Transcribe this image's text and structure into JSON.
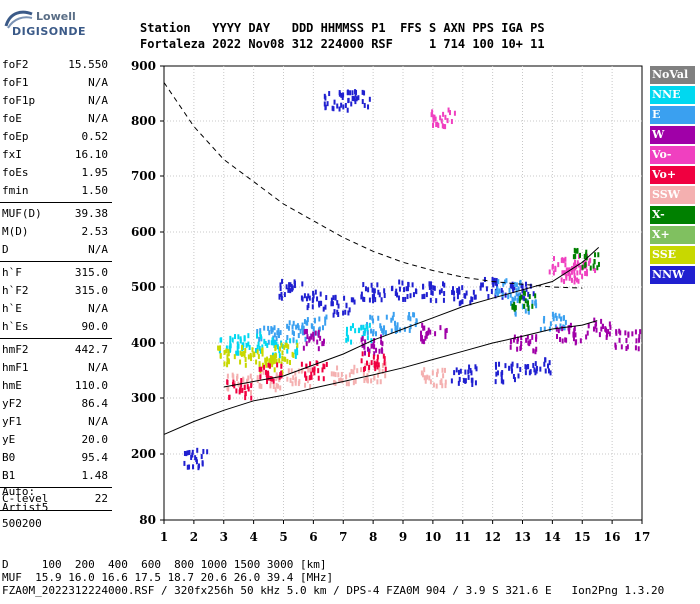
{
  "logo": {
    "top": "Lowell",
    "bottom": "DIGISONDE"
  },
  "header": {
    "line1": "Station   YYYY DAY   DDD HHMMSS P1  FFS S AXN PPS IGA PS",
    "line2": "Fortaleza 2022 Nov08 312 224000 RSF     1 714 100 10+ 11"
  },
  "params": {
    "group1": [
      {
        "name": "foF2",
        "value": "15.550"
      },
      {
        "name": "foF1",
        "value": "N/A"
      },
      {
        "name": "foF1p",
        "value": "N/A"
      },
      {
        "name": "foE",
        "value": "N/A"
      },
      {
        "name": "foEp",
        "value": "0.52"
      },
      {
        "name": "fxI",
        "value": "16.10"
      },
      {
        "name": "foEs",
        "value": "1.95"
      },
      {
        "name": "fmin",
        "value": "1.50"
      }
    ],
    "group2": [
      {
        "name": "MUF(D)",
        "value": "39.38"
      },
      {
        "name": "M(D)",
        "value": "2.53"
      },
      {
        "name": "D",
        "value": "N/A"
      }
    ],
    "group3": [
      {
        "name": "h`F",
        "value": "315.0"
      },
      {
        "name": "h`F2",
        "value": "315.0"
      },
      {
        "name": "h`E",
        "value": "N/A"
      },
      {
        "name": "h`Es",
        "value": "90.0"
      }
    ],
    "group4": [
      {
        "name": "hmF2",
        "value": "442.7"
      },
      {
        "name": "hmF1",
        "value": "N/A"
      },
      {
        "name": "hmE",
        "value": "110.0"
      },
      {
        "name": "yF2",
        "value": "86.4"
      },
      {
        "name": "yF1",
        "value": "N/A"
      },
      {
        "name": "yE",
        "value": "20.0"
      },
      {
        "name": "B0",
        "value": "95.4"
      },
      {
        "name": "B1",
        "value": "1.48"
      }
    ],
    "group5": [
      {
        "name": "C-level",
        "value": "22"
      }
    ]
  },
  "auto": {
    "line1": "Auto:",
    "line2": "Artist5",
    "line3": "500200"
  },
  "legend": [
    {
      "label": "NoVal",
      "color": "#808080"
    },
    {
      "label": "NNE",
      "color": "#00d8f0"
    },
    {
      "label": "E",
      "color": "#3aa0f0"
    },
    {
      "label": "W",
      "color": "#a000a8"
    },
    {
      "label": "Vo-",
      "color": "#f040c0"
    },
    {
      "label": "Vo+",
      "color": "#f00040"
    },
    {
      "label": "SSW",
      "color": "#f4b0b0"
    },
    {
      "label": "X-",
      "color": "#008000"
    },
    {
      "label": "X+",
      "color": "#80c060"
    },
    {
      "label": "SSE",
      "color": "#c8d800"
    },
    {
      "label": "NNW",
      "color": "#2020d0"
    }
  ],
  "chart_data": {
    "type": "scatter",
    "title": "",
    "xlabel": "",
    "ylabel": "",
    "xlim": [
      1,
      17
    ],
    "ylim": [
      80,
      900
    ],
    "x_ticks": [
      "1",
      "2",
      "3",
      "4",
      "5",
      "6",
      "7",
      "8",
      "9",
      "10",
      "11",
      "12",
      "13",
      "14",
      "15",
      "16",
      "17"
    ],
    "y_ticks": [
      "80",
      "200",
      "300",
      "400",
      "500",
      "600",
      "700",
      "800",
      "900"
    ],
    "y_tick_values": [
      80,
      200,
      300,
      400,
      500,
      600,
      700,
      800,
      900
    ],
    "grid": true,
    "series": [
      {
        "name": "NNW",
        "points": [
          [
            5.2,
            500
          ],
          [
            6,
            480
          ],
          [
            7,
            470
          ],
          [
            8,
            495
          ],
          [
            9,
            498
          ],
          [
            10,
            495
          ],
          [
            11,
            490
          ],
          [
            12,
            502
          ],
          [
            13,
            498
          ],
          [
            13.5,
            360
          ],
          [
            12.5,
            350
          ],
          [
            11,
            345
          ],
          [
            7.5,
            845
          ],
          [
            6.7,
            840
          ],
          [
            2,
            195
          ]
        ]
      },
      {
        "name": "E",
        "points": [
          [
            4.5,
            420
          ],
          [
            5.5,
            425
          ],
          [
            6,
            435
          ],
          [
            8,
            435
          ],
          [
            9,
            440
          ],
          [
            12.5,
            500
          ],
          [
            14,
            440
          ],
          [
            13,
            470
          ]
        ]
      },
      {
        "name": "NNE",
        "points": [
          [
            3.2,
            400
          ],
          [
            4,
            405
          ],
          [
            5,
            395
          ],
          [
            7.5,
            420
          ]
        ]
      },
      {
        "name": "SSE",
        "points": [
          [
            3.2,
            380
          ],
          [
            4,
            380
          ],
          [
            4.5,
            365
          ],
          [
            5,
            385
          ]
        ]
      },
      {
        "name": "SSW",
        "points": [
          [
            3.5,
            330
          ],
          [
            4.5,
            335
          ],
          [
            5.5,
            340
          ],
          [
            7,
            345
          ],
          [
            8,
            350
          ],
          [
            10,
            340
          ]
        ]
      },
      {
        "name": "W",
        "points": [
          [
            6,
            410
          ],
          [
            8,
            400
          ],
          [
            10,
            420
          ],
          [
            13,
            400
          ],
          [
            14.5,
            420
          ],
          [
            15.5,
            430
          ],
          [
            16.5,
            410
          ]
        ]
      },
      {
        "name": "Vo-",
        "points": [
          [
            14.3,
            540
          ],
          [
            14.7,
            530
          ],
          [
            15,
            545
          ],
          [
            10.3,
            810
          ]
        ]
      },
      {
        "name": "Vo+",
        "points": [
          [
            3.5,
            320
          ],
          [
            4.5,
            350
          ],
          [
            6,
            355
          ],
          [
            8,
            370
          ]
        ]
      },
      {
        "name": "X-",
        "points": [
          [
            13,
            480
          ],
          [
            15.1,
            555
          ]
        ]
      }
    ],
    "lines": {
      "solid_upper": [
        [
          3,
          320
        ],
        [
          4,
          330
        ],
        [
          5,
          340
        ],
        [
          6,
          360
        ],
        [
          7,
          380
        ],
        [
          8,
          405
        ],
        [
          9,
          425
        ],
        [
          10,
          445
        ],
        [
          11,
          465
        ],
        [
          12,
          480
        ],
        [
          13,
          495
        ],
        [
          14,
          510
        ],
        [
          15,
          545
        ],
        [
          15.55,
          572
        ]
      ],
      "solid_lower": [
        [
          1,
          235
        ],
        [
          2,
          258
        ],
        [
          3,
          278
        ],
        [
          4,
          295
        ],
        [
          5,
          305
        ],
        [
          6,
          318
        ],
        [
          7,
          330
        ],
        [
          8,
          342
        ],
        [
          9,
          355
        ],
        [
          10,
          370
        ],
        [
          11,
          385
        ],
        [
          12,
          400
        ],
        [
          13,
          412
        ],
        [
          14,
          425
        ],
        [
          15,
          432
        ],
        [
          15.5,
          440
        ]
      ],
      "dashed_profile": [
        [
          1,
          870
        ],
        [
          2,
          790
        ],
        [
          3,
          730
        ],
        [
          4,
          690
        ],
        [
          5,
          650
        ],
        [
          6,
          620
        ],
        [
          7,
          590
        ],
        [
          8,
          565
        ],
        [
          9,
          545
        ],
        [
          10,
          530
        ],
        [
          11,
          518
        ],
        [
          12,
          510
        ],
        [
          13,
          505
        ],
        [
          14,
          500
        ],
        [
          15,
          498
        ]
      ]
    }
  },
  "footer": {
    "line1": "D     100  200  400  600  800 1000 1500 3000 [km]",
    "line2": "MUF  15.9 16.0 16.6 17.5 18.7 20.6 26.0 39.4 [MHz]",
    "line3": "FZA0M_2022312224000.RSF / 320fx256h 50 kHz 5.0 km / DPS-4 FZA0M 904 / 3.9 S 321.6 E   Ion2Png 1.3.20"
  }
}
